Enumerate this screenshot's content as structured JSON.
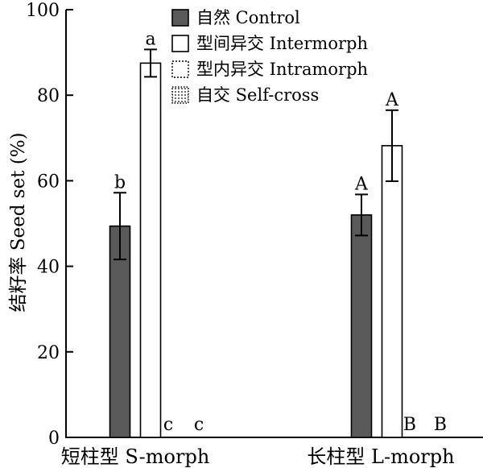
{
  "chart_data": {
    "type": "bar",
    "ylabel": "结籽率 Seed set (%)",
    "ylim": [
      0,
      100
    ],
    "yticks": [
      0,
      20,
      40,
      60,
      80,
      100
    ],
    "categories": [
      "短柱型 S-morph",
      "长柱型 L-morph"
    ],
    "legend_position": "top-center",
    "series": [
      {
        "name": "自然 Control",
        "fill": "#5a5a5a",
        "pattern": "solid",
        "values": [
          49.4,
          52.0
        ],
        "errors": [
          7.8,
          4.8
        ],
        "letters": [
          "b",
          "A"
        ]
      },
      {
        "name": "型间异交 Intermorph",
        "fill": "#ffffff",
        "pattern": "none",
        "values": [
          87.5,
          68.2
        ],
        "errors": [
          3.2,
          8.3
        ],
        "letters": [
          "a",
          "A"
        ]
      },
      {
        "name": "型内异交 Intramorph",
        "fill": "#ffffff",
        "pattern": "dashed",
        "values": [
          0,
          0
        ],
        "errors": [
          0,
          0
        ],
        "letters": [
          "c",
          "B"
        ]
      },
      {
        "name": "自交 Self-cross",
        "fill": "#ffffff",
        "pattern": "dotted",
        "values": [
          0,
          0
        ],
        "errors": [
          0,
          0
        ],
        "letters": [
          "c",
          "B"
        ]
      }
    ]
  }
}
